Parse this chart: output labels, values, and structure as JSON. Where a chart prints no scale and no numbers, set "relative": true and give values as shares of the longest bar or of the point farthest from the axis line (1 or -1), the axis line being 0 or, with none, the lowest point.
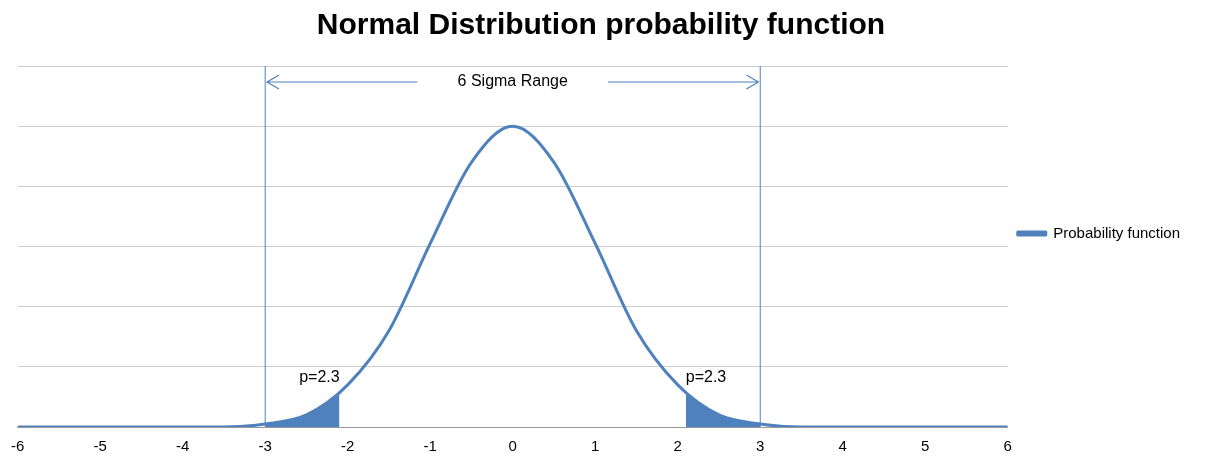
{
  "chart_data": {
    "type": "line",
    "title": "Normal Distribution probability function",
    "relative": true,
    "x": [
      -6,
      -5.5,
      -5,
      -4.5,
      -4,
      -3.5,
      -3,
      -2.5,
      -2,
      -1.5,
      -1,
      -0.5,
      0,
      0.5,
      1,
      1.5,
      2,
      2.5,
      3,
      3.5,
      4,
      4.5,
      5,
      5.5,
      6
    ],
    "xlim": [
      -6,
      6
    ],
    "xticks": [
      -6,
      -5,
      -4,
      -3,
      -2,
      -1,
      0,
      1,
      2,
      3,
      4,
      5,
      6
    ],
    "series": [
      {
        "name": "Probability function",
        "color": "#4f81bd",
        "values": [
          0,
          0,
          0,
          0,
          0,
          0,
          0.01,
          0.04,
          0.14,
          0.32,
          0.61,
          0.88,
          1,
          0.88,
          0.61,
          0.32,
          0.14,
          0.04,
          0.01,
          0,
          0,
          0,
          0,
          0,
          0
        ]
      },
      {
        "type": "area",
        "color": "#4f81bd",
        "x": [
          -3,
          -2.5,
          -2.1
        ],
        "values": [
          0.01,
          0.04,
          0.11
        ]
      },
      {
        "type": "area",
        "color": "#4f81bd",
        "x": [
          2.1,
          2.5,
          3
        ],
        "values": [
          0.11,
          0.04,
          0.01
        ]
      }
    ],
    "ref_lines": [
      {
        "axis": "x",
        "value": -3,
        "color": "#4f81bd"
      },
      {
        "axis": "x",
        "value": 3,
        "color": "#4f81bd"
      }
    ],
    "annotations": [
      "6 Sigma Range",
      "p=2.3",
      "p=2.3"
    ],
    "grid": "y",
    "legend": "right",
    "marker": "none"
  }
}
